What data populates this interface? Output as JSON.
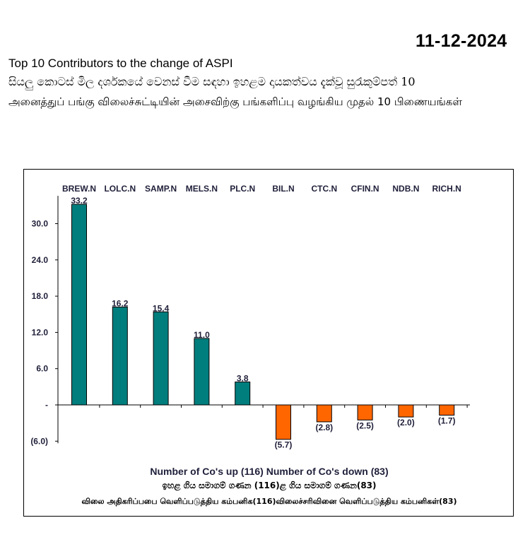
{
  "header": {
    "date": "11-12-2024",
    "title_en": "Top 10 Contributors to the change of ASPI",
    "title_si": "සියලු කොටස් මිල දර්ශකයේ වෙනස් වීම සඳහා ඉහළම දායකත්වය දැක්වූ සුරැකුම්පත් 10",
    "title_ta": "அனைத்துப் பங்கு விலைச்சுட்டியின் அசைவிற்கு பங்களிப்பு வழங்கிய முதல் 10 பிணையங்கள்"
  },
  "colors": {
    "up": "#007D7D",
    "down": "#FF6600"
  },
  "chart_data": {
    "type": "bar",
    "title": "Top 10 Contributors to the change of ASPI",
    "categories": [
      "BREW.N",
      "LOLC.N",
      "SAMP.N",
      "MELS.N",
      "PLC.N",
      "BIL.N",
      "CTC.N",
      "CFIN.N",
      "NDB.N",
      "RICH.N"
    ],
    "values": [
      33.2,
      16.2,
      15.4,
      11.0,
      3.8,
      -5.7,
      -2.8,
      -2.5,
      -2.0,
      -1.7
    ],
    "value_labels": [
      "33.2",
      "16.2",
      "15.4",
      "11.0",
      "3.8",
      "(5.7)",
      "(2.8)",
      "(2.5)",
      "(2.0)",
      "(1.7)"
    ],
    "y_ticks": [
      30,
      24,
      18,
      12,
      6,
      0,
      -6
    ],
    "y_tick_labels": [
      "30.0",
      "24.0",
      "18.0",
      "12.0",
      "6.0",
      "-",
      "(6.0)"
    ],
    "ylim": [
      -6,
      33.2
    ],
    "xlabel": "",
    "ylabel": "",
    "legend": "none",
    "grid": false
  },
  "footer": {
    "line1": "Number of Co's up (116) Number of Co's down  (83)",
    "line2": "ඉහළ ගිය සමාගම් ගණන (116)ළ ගිය සමාගම් ගණන(83)",
    "line3": "விலை அதிகரிப்பபை வெளிப்படுத்திய கம்பனிக(116)விலைச்சரிவினை வெளிப்படுத்திய கம்பனிகள்(83)"
  }
}
